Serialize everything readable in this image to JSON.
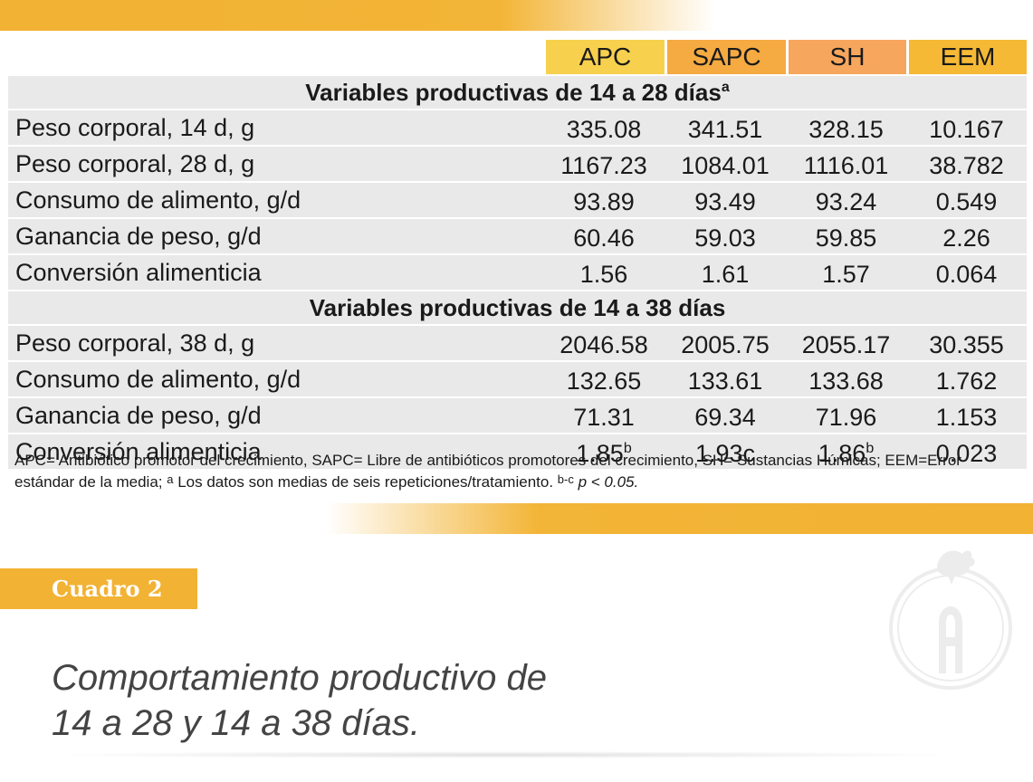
{
  "columns": [
    "APC",
    "SAPC",
    "SH",
    "EEM"
  ],
  "sections": [
    {
      "title": "Variables productivas de 14 a 28 días",
      "title_sup": "a",
      "rows": [
        {
          "label": "Peso corporal, 14 d, g",
          "values": [
            "335.08",
            "341.51",
            "328.15",
            "10.167"
          ]
        },
        {
          "label": "Peso corporal, 28 d, g",
          "values": [
            "1167.23",
            "1084.01",
            "1116.01",
            "38.782"
          ]
        },
        {
          "label": "Consumo de alimento, g/d",
          "values": [
            "93.89",
            "93.49",
            "93.24",
            "0.549"
          ]
        },
        {
          "label": "Ganancia de peso, g/d",
          "values": [
            "60.46",
            "59.03",
            "59.85",
            "2.26"
          ]
        },
        {
          "label": "Conversión alimenticia",
          "values": [
            "1.56",
            "1.61",
            "1.57",
            "0.064"
          ]
        }
      ]
    },
    {
      "title": "Variables productivas de 14 a 38 días",
      "title_sup": "",
      "rows": [
        {
          "label": "Peso corporal, 38 d, g",
          "values": [
            "2046.58",
            "2005.75",
            "2055.17",
            "30.355"
          ]
        },
        {
          "label": "Consumo de alimento, g/d",
          "values": [
            "132.65",
            "133.61",
            "133.68",
            "1.762"
          ]
        },
        {
          "label": "Ganancia de peso, g/d",
          "values": [
            "71.31",
            "69.34",
            "71.96",
            "1.153"
          ]
        },
        {
          "label": "Conversión alimenticia",
          "values": [
            "1.85",
            "1.93c",
            "1.86",
            "0.023"
          ],
          "sups": [
            "b",
            "",
            "b",
            ""
          ]
        }
      ]
    }
  ],
  "footnote": {
    "text1": "APC= Antibiótico promotor del crecimiento, SAPC= Libre de antibióticos promotores del crecimiento, SH= Sustancias Húmicas; EEM=Error estándar de la media;",
    "sup_a": "a",
    "text2": "Los datos son medias de seis repeticiones/tratamiento.",
    "sup_bc": "b-c",
    "p_value": "p < 0.05."
  },
  "cuadro_label": "Cuadro 2",
  "caption_line1": "Comportamiento productivo de",
  "caption_line2": "14 a 28 y 14 a 38 días.",
  "logo_icon": "rooster-apple-logo-icon",
  "colors": {
    "bar": "#f2b233",
    "apc": "#f7d14e",
    "sapc": "#f5aa42",
    "sh": "#f7a65e",
    "eem": "#f5b936",
    "row_bg": "#e9e9e9"
  }
}
